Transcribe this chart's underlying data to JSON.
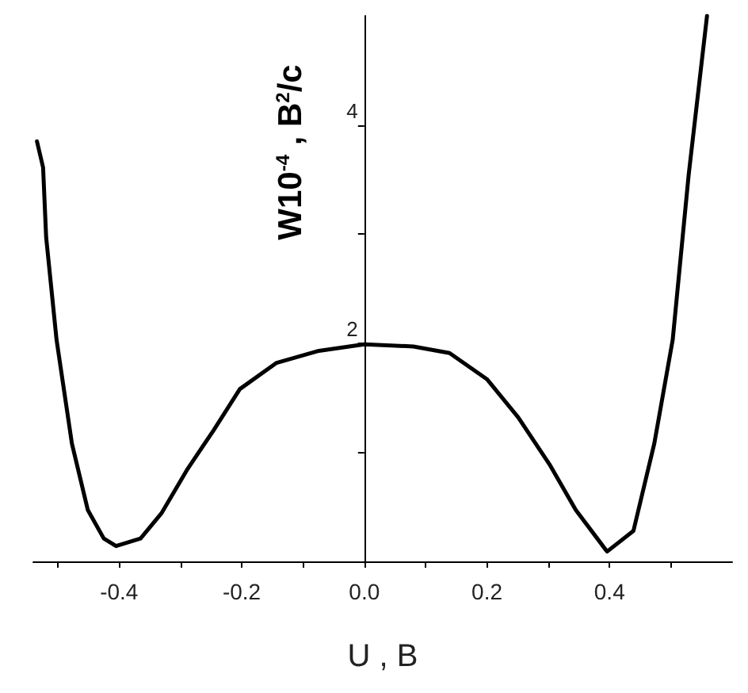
{
  "chart_data": {
    "type": "line",
    "xlabel": "U , В",
    "ylabel": "W10$^{-4}$ , В$^{2}$/с",
    "x": [
      -0.534,
      -0.524,
      -0.519,
      -0.502,
      -0.477,
      -0.451,
      -0.425,
      -0.405,
      -0.365,
      -0.331,
      -0.288,
      -0.246,
      -0.203,
      -0.143,
      -0.074,
      0,
      0.08,
      0.139,
      0.2,
      0.251,
      0.302,
      0.345,
      0.396,
      0.439,
      0.473,
      0.503,
      0.529,
      0.559
    ],
    "series": [
      {
        "color": "#000000",
        "values": [
          3.85,
          3.61,
          2.97,
          2.03,
          1.08,
          0.47,
          0.21,
          0.14,
          0.21,
          0.44,
          0.85,
          1.2,
          1.58,
          1.82,
          1.93,
          1.99,
          1.97,
          1.91,
          1.67,
          1.32,
          0.89,
          0.47,
          0.09,
          0.28,
          1.08,
          2.03,
          3.54,
          5.0
        ]
      }
    ],
    "xlim": [
      -0.54,
      0.6
    ],
    "xticks": [
      {
        "value": -0.5,
        "label": null
      },
      -0.4,
      {
        "value": -0.3,
        "label": null
      },
      -0.2,
      {
        "value": -0.1,
        "label": null
      },
      {
        "value": 0,
        "label": "0.0"
      },
      {
        "value": 0.1,
        "label": null
      },
      0.2,
      {
        "value": 0.3,
        "label": null
      },
      0.4,
      {
        "value": 0.5,
        "label": null
      }
    ],
    "ylim": [
      0,
      5
    ],
    "yticks": [
      {
        "value": 1,
        "label": null
      },
      2,
      {
        "value": 3,
        "label": null
      },
      4
    ],
    "marker": "none",
    "line_style": "solid"
  }
}
